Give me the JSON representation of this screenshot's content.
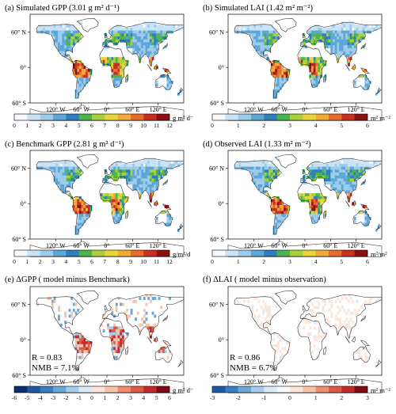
{
  "panels": [
    {
      "id": "a",
      "title": "(a) Simulated GPP (3.01 g m² d⁻¹)",
      "unit": "g m² d⁻¹",
      "colorbar_ticks": [
        "0",
        "1",
        "2",
        "3",
        "4",
        "5",
        "6",
        "7",
        "8",
        "9",
        "10",
        "11",
        "12"
      ],
      "colors": [
        "#f7fbff",
        "#c9e3f6",
        "#9ccbeb",
        "#5da7d6",
        "#2f7fbf",
        "#4ab44f",
        "#a9cf3f",
        "#e8d43b",
        "#f3a93a",
        "#e76b2a",
        "#c8301f",
        "#8c0f12"
      ],
      "hotspot": "#c8301f",
      "style": "full"
    },
    {
      "id": "b",
      "title": "(b) Simulated LAI (1.42 m² m⁻²)",
      "unit": "m² m⁻²",
      "colorbar_ticks": [
        "0",
        "1",
        "2",
        "3",
        "4",
        "5",
        "6"
      ],
      "colors": [
        "#f7fbff",
        "#c9e3f6",
        "#9ccbeb",
        "#5da7d6",
        "#2f7fbf",
        "#4ab44f",
        "#a9cf3f",
        "#e8d43b",
        "#f3a93a",
        "#e76b2a",
        "#c8301f",
        "#8c0f12"
      ],
      "hotspot": "#b52a1c",
      "style": "full"
    },
    {
      "id": "c",
      "title": "(c) Benchmark GPP (2.81 g m² d⁻¹)",
      "unit": "g/m²/d",
      "colorbar_ticks": [
        "0",
        "1",
        "2",
        "3",
        "4",
        "5",
        "6",
        "7",
        "8",
        "9",
        "10",
        "11",
        "12"
      ],
      "colors": [
        "#f7fbff",
        "#c9e3f6",
        "#9ccbeb",
        "#5da7d6",
        "#2f7fbf",
        "#4ab44f",
        "#a9cf3f",
        "#e8d43b",
        "#f3a93a",
        "#e76b2a",
        "#c8301f",
        "#8c0f12"
      ],
      "hotspot": "#e76b2a",
      "style": "full"
    },
    {
      "id": "d",
      "title": "(d) Observed LAI (1.33 m² m⁻²)",
      "unit": "m²/m²",
      "colorbar_ticks": [
        "0",
        "1",
        "2",
        "3",
        "4",
        "5",
        "6"
      ],
      "colors": [
        "#f7fbff",
        "#c9e3f6",
        "#9ccbeb",
        "#5da7d6",
        "#2f7fbf",
        "#4ab44f",
        "#a9cf3f",
        "#e8d43b",
        "#f3a93a",
        "#e76b2a",
        "#c8301f",
        "#8c0f12"
      ],
      "hotspot": "#c8301f",
      "style": "full"
    },
    {
      "id": "e",
      "title": "(e) ΔGPP ( model minus Benchmark)",
      "unit": "g m² d⁻¹",
      "colorbar_ticks": [
        "-6",
        "-5",
        "-4",
        "-3",
        "-2",
        "-1",
        "0",
        "1",
        "2",
        "3",
        "4",
        "5",
        "6"
      ],
      "colors": [
        "#0b2f6b",
        "#1f58a5",
        "#3a7fc2",
        "#6aa7d8",
        "#a5ccea",
        "#dbeaf6",
        "#fde6d9",
        "#f8c2a6",
        "#ef8e6e",
        "#dc5a46",
        "#c02a2a",
        "#7f0a12"
      ],
      "stat_r": "R = 0.83",
      "stat_nmb": "NMB = 7.1%",
      "style": "diff"
    },
    {
      "id": "f",
      "title": "(f) ΔLAI ( model minus observation)",
      "unit": "m² m⁻²",
      "colorbar_ticks": [
        "-3",
        "-2",
        "-1",
        "0",
        "1",
        "2",
        "3"
      ],
      "colors": [
        "#1f58a5",
        "#3a7fc2",
        "#6aa7d8",
        "#a5ccea",
        "#dbeaf6",
        "#f7fbff",
        "#fde6d9",
        "#f8c2a6",
        "#ef8e6e",
        "#dc5a46",
        "#c02a2a",
        "#7f0a12"
      ],
      "stat_r": "R = 0.86",
      "stat_nmb": "NMB = 6.7%",
      "style": "diffsoft"
    }
  ],
  "lat_labels": [
    "60° N",
    "0°",
    "60° S"
  ],
  "lon_labels": [
    "120° W",
    "60° W",
    "0°",
    "60° E",
    "120° E"
  ]
}
